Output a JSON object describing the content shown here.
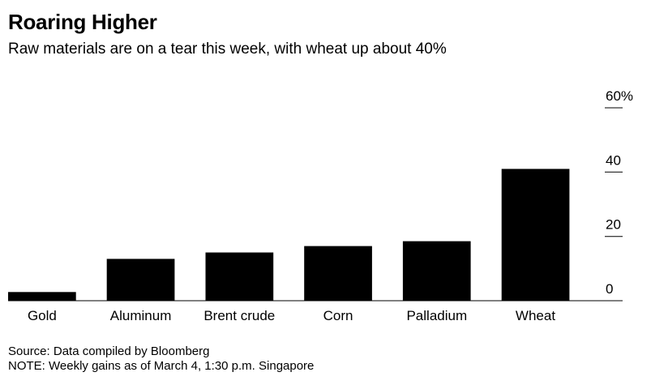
{
  "title": "Roaring Higher",
  "subtitle": "Raw materials are on a tear this week, with wheat up about 40%",
  "chart_data": {
    "type": "bar",
    "categories": [
      "Gold",
      "Aluminum",
      "Brent crude",
      "Corn",
      "Palladium",
      "Wheat"
    ],
    "values": [
      2.7,
      13,
      15,
      17,
      18.5,
      41
    ],
    "ylim": [
      0,
      60
    ],
    "y_ticks": [
      {
        "value": 0,
        "label": "0"
      },
      {
        "value": 20,
        "label": "20"
      },
      {
        "value": 40,
        "label": "40"
      },
      {
        "value": 60,
        "label": "60%"
      }
    ],
    "bar_color": "#000000",
    "grid": false,
    "legend": "none"
  },
  "source": "Source: Data compiled by Bloomberg",
  "note": "NOTE: Weekly gains as of March 4, 1:30 p.m. Singapore"
}
